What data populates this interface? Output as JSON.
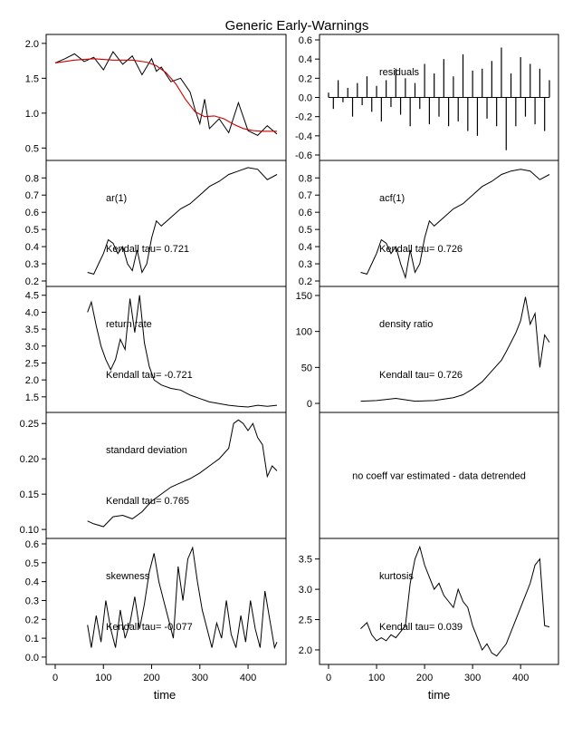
{
  "title": "Generic Early-Warnings",
  "chart_data": [
    {
      "type": "line",
      "id": "data",
      "xlim": [
        0,
        460
      ],
      "ylim": [
        0.4,
        2.05
      ],
      "x_ticks": [
        0,
        100,
        200,
        300,
        400
      ],
      "y_ticks": [
        0.5,
        1.0,
        1.5,
        2.0
      ],
      "y_tick_labels": [
        "0.5",
        "1.0",
        "1.5",
        "2.0"
      ],
      "label": "",
      "tau": "",
      "series": [
        {
          "color": "#000000",
          "x": [
            0,
            20,
            40,
            60,
            80,
            100,
            120,
            140,
            160,
            180,
            200,
            210,
            220,
            240,
            260,
            280,
            290,
            300,
            310,
            320,
            340,
            360,
            380,
            400,
            420,
            440,
            460
          ],
          "values": [
            1.72,
            1.78,
            1.85,
            1.74,
            1.8,
            1.62,
            1.88,
            1.7,
            1.82,
            1.55,
            1.78,
            1.6,
            1.66,
            1.45,
            1.5,
            1.3,
            1.05,
            0.85,
            1.2,
            0.78,
            0.92,
            0.72,
            1.15,
            0.75,
            0.68,
            0.82,
            0.7
          ]
        },
        {
          "color": "#cc0000",
          "x": [
            0,
            40,
            80,
            120,
            160,
            190,
            210,
            230,
            250,
            270,
            290,
            310,
            330,
            350,
            370,
            390,
            410,
            430,
            460
          ],
          "values": [
            1.72,
            1.76,
            1.78,
            1.76,
            1.76,
            1.73,
            1.68,
            1.58,
            1.42,
            1.2,
            1.02,
            0.95,
            0.96,
            0.92,
            0.84,
            0.78,
            0.75,
            0.74,
            0.74
          ]
        }
      ]
    },
    {
      "type": "bar",
      "id": "residuals",
      "xlim": [
        0,
        460
      ],
      "ylim": [
        -0.6,
        0.6
      ],
      "x_ticks": [
        0,
        100,
        200,
        300,
        400
      ],
      "y_ticks": [
        -0.6,
        -0.4,
        -0.2,
        0.0,
        0.2,
        0.4,
        0.6
      ],
      "y_tick_labels": [
        "-0.6",
        "-0.4",
        "-0.2",
        "0.0",
        "0.2",
        "0.4",
        "0.6"
      ],
      "label": "residuals",
      "tau": "",
      "x": [
        0,
        10,
        20,
        30,
        40,
        50,
        60,
        70,
        80,
        90,
        100,
        110,
        120,
        130,
        140,
        150,
        160,
        170,
        180,
        190,
        200,
        210,
        220,
        230,
        240,
        250,
        260,
        270,
        280,
        290,
        300,
        310,
        320,
        330,
        340,
        350,
        360,
        370,
        380,
        390,
        400,
        410,
        420,
        430,
        440,
        450,
        460
      ],
      "values": [
        0.05,
        -0.12,
        0.18,
        -0.05,
        0.1,
        -0.2,
        0.15,
        -0.08,
        0.22,
        -0.15,
        0.12,
        -0.25,
        0.18,
        -0.1,
        0.3,
        -0.18,
        0.2,
        -0.3,
        0.15,
        -0.12,
        0.35,
        -0.28,
        0.25,
        -0.2,
        0.4,
        -0.3,
        0.22,
        -0.25,
        0.45,
        -0.35,
        0.28,
        -0.4,
        0.3,
        -0.22,
        0.38,
        -0.3,
        0.52,
        -0.55,
        0.25,
        -0.3,
        0.42,
        -0.2,
        0.35,
        -0.28,
        0.3,
        -0.35,
        0.18
      ]
    },
    {
      "type": "line",
      "id": "ar1",
      "xlim": [
        0,
        460
      ],
      "ylim": [
        0.2,
        0.87
      ],
      "x_ticks": [
        0,
        100,
        200,
        300,
        400
      ],
      "y_ticks": [
        0.2,
        0.3,
        0.4,
        0.5,
        0.6,
        0.7,
        0.8
      ],
      "y_tick_labels": [
        "0.2",
        "0.3",
        "0.4",
        "0.5",
        "0.6",
        "0.7",
        "0.8"
      ],
      "label": "ar(1)",
      "tau": "Kendall tau= 0.721",
      "series": [
        {
          "color": "#000000",
          "x": [
            67,
            80,
            90,
            100,
            110,
            120,
            130,
            140,
            150,
            160,
            170,
            180,
            190,
            200,
            210,
            220,
            240,
            260,
            280,
            300,
            320,
            340,
            360,
            380,
            400,
            420,
            440,
            460
          ],
          "values": [
            0.25,
            0.24,
            0.3,
            0.36,
            0.44,
            0.42,
            0.36,
            0.4,
            0.3,
            0.26,
            0.38,
            0.25,
            0.3,
            0.45,
            0.55,
            0.52,
            0.57,
            0.62,
            0.65,
            0.7,
            0.75,
            0.78,
            0.82,
            0.84,
            0.86,
            0.85,
            0.79,
            0.82
          ]
        }
      ]
    },
    {
      "type": "line",
      "id": "acf1",
      "xlim": [
        0,
        460
      ],
      "ylim": [
        0.2,
        0.87
      ],
      "x_ticks": [
        0,
        100,
        200,
        300,
        400
      ],
      "y_ticks": [
        0.2,
        0.3,
        0.4,
        0.5,
        0.6,
        0.7,
        0.8
      ],
      "y_tick_labels": [
        "0.2",
        "0.3",
        "0.4",
        "0.5",
        "0.6",
        "0.7",
        "0.8"
      ],
      "label": "acf(1)",
      "tau": "Kendall tau= 0.726",
      "series": [
        {
          "color": "#000000",
          "x": [
            67,
            80,
            90,
            100,
            110,
            120,
            130,
            140,
            150,
            160,
            170,
            180,
            190,
            200,
            210,
            220,
            240,
            260,
            280,
            300,
            320,
            340,
            360,
            380,
            400,
            420,
            440,
            460
          ],
          "values": [
            0.25,
            0.24,
            0.3,
            0.36,
            0.44,
            0.42,
            0.36,
            0.4,
            0.3,
            0.22,
            0.38,
            0.25,
            0.3,
            0.45,
            0.55,
            0.52,
            0.57,
            0.62,
            0.65,
            0.7,
            0.75,
            0.78,
            0.82,
            0.84,
            0.85,
            0.84,
            0.79,
            0.82
          ]
        }
      ]
    },
    {
      "type": "line",
      "id": "return_rate",
      "xlim": [
        0,
        460
      ],
      "ylim": [
        1.2,
        4.6
      ],
      "x_ticks": [
        0,
        100,
        200,
        300,
        400
      ],
      "y_ticks": [
        1.5,
        2.0,
        2.5,
        3.0,
        3.5,
        4.0,
        4.5
      ],
      "y_tick_labels": [
        "1.5",
        "2.0",
        "2.5",
        "3.0",
        "3.5",
        "4.0",
        "4.5"
      ],
      "label": "return rate",
      "tau": "Kendall tau= -0.721",
      "series": [
        {
          "color": "#000000",
          "x": [
            67,
            75,
            85,
            95,
            105,
            115,
            125,
            135,
            145,
            155,
            165,
            175,
            185,
            195,
            205,
            220,
            240,
            260,
            280,
            300,
            320,
            340,
            360,
            380,
            400,
            420,
            440,
            460
          ],
          "values": [
            4.0,
            4.3,
            3.6,
            3.0,
            2.6,
            2.3,
            2.6,
            3.2,
            2.9,
            4.4,
            3.4,
            4.5,
            3.1,
            2.4,
            2.0,
            1.85,
            1.75,
            1.7,
            1.55,
            1.45,
            1.35,
            1.3,
            1.25,
            1.22,
            1.2,
            1.25,
            1.22,
            1.25
          ]
        }
      ]
    },
    {
      "type": "line",
      "id": "density_ratio",
      "xlim": [
        0,
        460
      ],
      "ylim": [
        -5,
        155
      ],
      "x_ticks": [
        0,
        100,
        200,
        300,
        400
      ],
      "y_ticks": [
        0,
        50,
        100,
        150
      ],
      "y_tick_labels": [
        "0",
        "50",
        "100",
        "150"
      ],
      "label": "density ratio",
      "tau": "Kendall tau= 0.726",
      "series": [
        {
          "color": "#000000",
          "x": [
            67,
            100,
            140,
            180,
            220,
            260,
            280,
            300,
            320,
            340,
            360,
            370,
            380,
            390,
            400,
            410,
            420,
            430,
            440,
            450,
            460
          ],
          "values": [
            3,
            4,
            7,
            3,
            4,
            8,
            12,
            20,
            30,
            45,
            60,
            72,
            85,
            98,
            115,
            148,
            110,
            125,
            50,
            95,
            85
          ]
        }
      ]
    },
    {
      "type": "line",
      "id": "sd",
      "xlim": [
        0,
        460
      ],
      "ylim": [
        0.095,
        0.258
      ],
      "x_ticks": [
        0,
        100,
        200,
        300,
        400
      ],
      "y_ticks": [
        0.1,
        0.15,
        0.2,
        0.25
      ],
      "y_tick_labels": [
        "0.10",
        "0.15",
        "0.20",
        "0.25"
      ],
      "label": "standard deviation",
      "tau": "Kendall tau= 0.765",
      "series": [
        {
          "color": "#000000",
          "x": [
            67,
            80,
            100,
            120,
            140,
            160,
            180,
            200,
            220,
            240,
            260,
            280,
            300,
            320,
            340,
            360,
            370,
            380,
            390,
            400,
            410,
            420,
            430,
            440,
            450,
            460
          ],
          "values": [
            0.112,
            0.108,
            0.104,
            0.118,
            0.12,
            0.115,
            0.125,
            0.14,
            0.15,
            0.16,
            0.166,
            0.172,
            0.18,
            0.19,
            0.2,
            0.215,
            0.25,
            0.255,
            0.25,
            0.24,
            0.25,
            0.23,
            0.22,
            0.175,
            0.19,
            0.183
          ]
        }
      ]
    },
    {
      "type": "message",
      "id": "cv",
      "message": "no coeff var estimated - data detrended"
    },
    {
      "type": "line",
      "id": "skewness",
      "xlim": [
        0,
        460
      ],
      "ylim": [
        -0.01,
        0.6
      ],
      "x_ticks": [
        0,
        100,
        200,
        300,
        400
      ],
      "y_ticks": [
        0.0,
        0.1,
        0.2,
        0.3,
        0.4,
        0.5,
        0.6
      ],
      "y_tick_labels": [
        "0.0",
        "0.1",
        "0.2",
        "0.3",
        "0.4",
        "0.5",
        "0.6"
      ],
      "label": "skewness",
      "tau": "Kendall tau= -0.077",
      "series": [
        {
          "color": "#000000",
          "x": [
            67,
            75,
            85,
            95,
            105,
            115,
            125,
            135,
            145,
            155,
            165,
            175,
            185,
            195,
            205,
            215,
            225,
            235,
            245,
            255,
            265,
            275,
            285,
            295,
            305,
            315,
            325,
            335,
            345,
            355,
            365,
            375,
            385,
            395,
            405,
            415,
            425,
            435,
            445,
            455,
            460
          ],
          "values": [
            0.17,
            0.05,
            0.22,
            0.08,
            0.3,
            0.15,
            0.05,
            0.25,
            0.1,
            0.18,
            0.32,
            0.15,
            0.28,
            0.45,
            0.55,
            0.4,
            0.3,
            0.2,
            0.1,
            0.48,
            0.3,
            0.52,
            0.58,
            0.4,
            0.25,
            0.15,
            0.05,
            0.18,
            0.1,
            0.3,
            0.12,
            0.05,
            0.22,
            0.08,
            0.3,
            0.15,
            0.05,
            0.35,
            0.2,
            0.05,
            0.08
          ]
        }
      ]
    },
    {
      "type": "line",
      "id": "kurtosis",
      "xlim": [
        0,
        460
      ],
      "ylim": [
        1.85,
        3.75
      ],
      "x_ticks": [
        0,
        100,
        200,
        300,
        400
      ],
      "y_ticks": [
        2.0,
        2.5,
        3.0,
        3.5
      ],
      "y_tick_labels": [
        "2.0",
        "2.5",
        "3.0",
        "3.5"
      ],
      "label": "kurtosis",
      "tau": "Kendall tau= 0.039",
      "series": [
        {
          "color": "#000000",
          "x": [
            67,
            80,
            90,
            100,
            110,
            120,
            130,
            140,
            150,
            160,
            170,
            180,
            190,
            200,
            210,
            220,
            230,
            240,
            250,
            260,
            270,
            280,
            290,
            300,
            310,
            320,
            330,
            340,
            350,
            360,
            370,
            380,
            390,
            400,
            410,
            420,
            430,
            440,
            450,
            460
          ],
          "values": [
            2.35,
            2.45,
            2.25,
            2.15,
            2.2,
            2.15,
            2.25,
            2.2,
            2.3,
            2.4,
            3.1,
            3.5,
            3.7,
            3.4,
            3.2,
            3.0,
            3.1,
            2.9,
            2.8,
            2.7,
            3.0,
            2.8,
            2.7,
            2.4,
            2.2,
            2.0,
            2.1,
            1.95,
            1.9,
            2.0,
            2.1,
            2.3,
            2.5,
            2.7,
            2.9,
            3.1,
            3.4,
            3.5,
            2.4,
            2.38
          ]
        }
      ]
    }
  ],
  "x_axis_title": "time"
}
